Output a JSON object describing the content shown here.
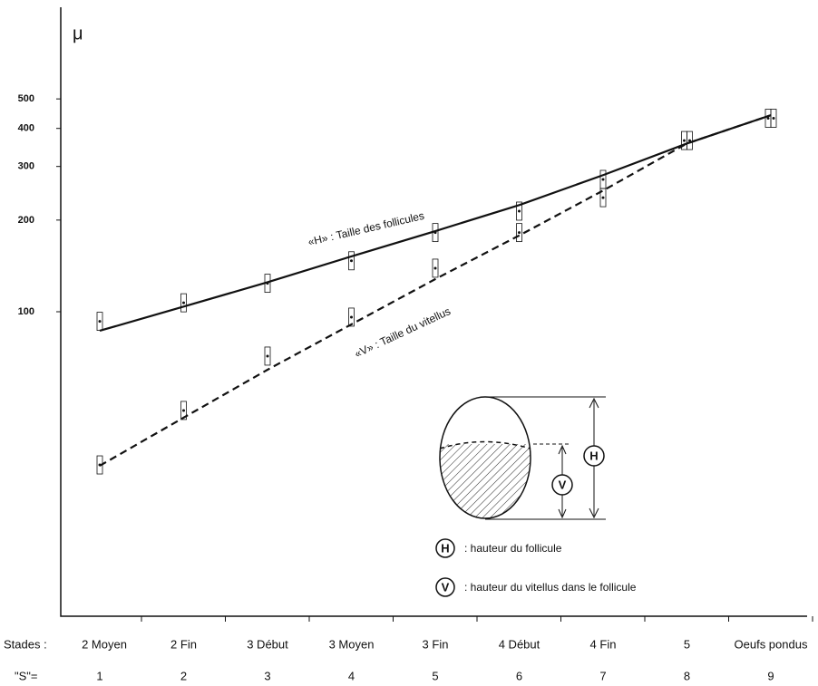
{
  "chart_data": {
    "type": "line",
    "y_label": "μ",
    "log_scale": true,
    "ylim": [
      10,
      1000
    ],
    "yticks": [
      100,
      200,
      300,
      400,
      500
    ],
    "x_row_titles": [
      "Stades :",
      "\"S\"="
    ],
    "x_labels": [
      "2 Moyen",
      "2 Fin",
      "3 Début",
      "3 Moyen",
      "3 Fin",
      "4 Début",
      "4 Fin",
      "5",
      "Oeufs pondus"
    ],
    "categories": [
      "1",
      "2",
      "3",
      "4",
      "5",
      "6",
      "7",
      "8",
      "9"
    ],
    "series": [
      {
        "name": "«H» : Taille des follicules",
        "color": "#111111",
        "dashed": false,
        "values": [
          86.6,
          104,
          125,
          152,
          184,
          224,
          281,
          357,
          442
        ],
        "observed": [
          93,
          107,
          124,
          147,
          182,
          214,
          272,
          365,
          432
        ]
      },
      {
        "name": "«V» : Taille du vitellus",
        "color": "#111111",
        "dashed": true,
        "values": [
          31.2,
          44.9,
          64.5,
          90.9,
          128,
          178,
          250,
          357,
          442
        ],
        "observed": [
          31.4,
          47.4,
          71.5,
          96,
          139,
          182,
          237,
          365,
          432
        ]
      }
    ],
    "diagram": {
      "h_symbol": "H",
      "v_symbol": "V",
      "legend": [
        ": hauteur du follicule",
        ": hauteur du vitellus dans le follicule"
      ]
    }
  }
}
